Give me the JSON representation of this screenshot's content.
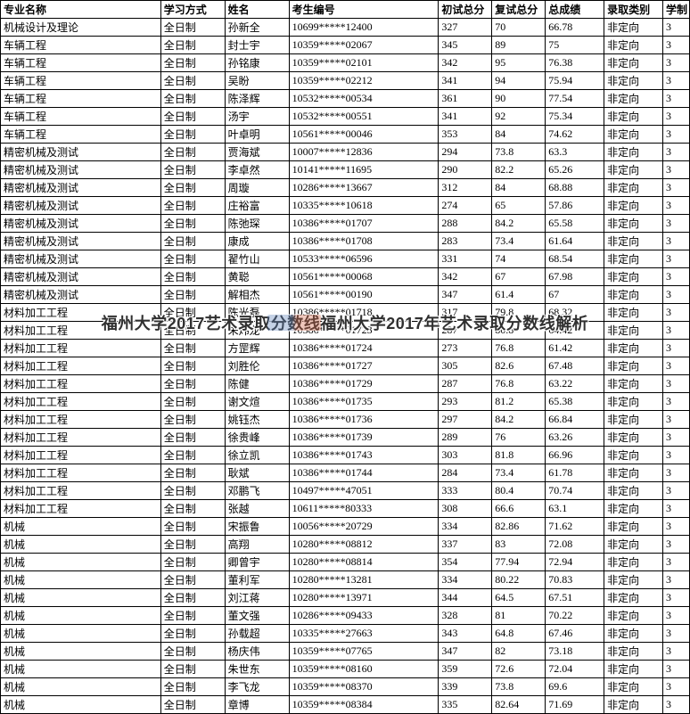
{
  "overlay_text": "福州大学2017艺术录取分数线福州大学2017年艺术录取分数线解析",
  "columns": [
    "专业名称",
    "学习方式",
    "姓名",
    "考生编号",
    "初试总分",
    "复试总分",
    "总成绩",
    "录取类别",
    "学制"
  ],
  "col_classes": [
    "col-major",
    "col-mode",
    "col-name",
    "col-id",
    "col-s1",
    "col-s2",
    "col-total",
    "col-cat",
    "col-dur"
  ],
  "rows": [
    [
      "机械设计及理论",
      "全日制",
      "孙新全",
      "10699*****12400",
      "327",
      "70",
      "66.78",
      "非定向",
      "3"
    ],
    [
      "车辆工程",
      "全日制",
      "封士宇",
      "10359*****02067",
      "345",
      "89",
      "75",
      "非定向",
      "3"
    ],
    [
      "车辆工程",
      "全日制",
      "孙铭康",
      "10359*****02101",
      "342",
      "95",
      "76.38",
      "非定向",
      "3"
    ],
    [
      "车辆工程",
      "全日制",
      "吴盼",
      "10359*****02212",
      "341",
      "94",
      "75.94",
      "非定向",
      "3"
    ],
    [
      "车辆工程",
      "全日制",
      "陈泽辉",
      "10532*****00534",
      "361",
      "90",
      "77.54",
      "非定向",
      "3"
    ],
    [
      "车辆工程",
      "全日制",
      "汤宇",
      "10532*****00551",
      "341",
      "92",
      "75.34",
      "非定向",
      "3"
    ],
    [
      "车辆工程",
      "全日制",
      "叶卓明",
      "10561*****00046",
      "353",
      "84",
      "74.62",
      "非定向",
      "3"
    ],
    [
      "精密机械及测试",
      "全日制",
      "贾海斌",
      "10007*****12836",
      "294",
      "73.8",
      "63.3",
      "非定向",
      "3"
    ],
    [
      "精密机械及测试",
      "全日制",
      "李卓然",
      "10141*****11695",
      "290",
      "82.2",
      "65.26",
      "非定向",
      "3"
    ],
    [
      "精密机械及测试",
      "全日制",
      "周璇",
      "10286*****13667",
      "312",
      "84",
      "68.88",
      "非定向",
      "3"
    ],
    [
      "精密机械及测试",
      "全日制",
      "庄裕富",
      "10335*****10618",
      "274",
      "65",
      "57.86",
      "非定向",
      "3"
    ],
    [
      "精密机械及测试",
      "全日制",
      "陈弛琛",
      "10386*****01707",
      "288",
      "84.2",
      "65.58",
      "非定向",
      "3"
    ],
    [
      "精密机械及测试",
      "全日制",
      "康成",
      "10386*****01708",
      "283",
      "73.4",
      "61.64",
      "非定向",
      "3"
    ],
    [
      "精密机械及测试",
      "全日制",
      "翟竹山",
      "10533*****06596",
      "331",
      "74",
      "68.54",
      "非定向",
      "3"
    ],
    [
      "精密机械及测试",
      "全日制",
      "黄聪",
      "10561*****00068",
      "342",
      "67",
      "67.98",
      "非定向",
      "3"
    ],
    [
      "精密机械及测试",
      "全日制",
      "解相杰",
      "10561*****00190",
      "347",
      "61.4",
      "67",
      "非定向",
      "3"
    ],
    [
      "材料加工工程",
      "全日制",
      "陈光磊",
      "10386*****01718",
      "317",
      "79.8",
      "68.32",
      "非定向",
      "3"
    ],
    [
      "材料加工工程",
      "全日制",
      "朱炜龙",
      "10386*****01723",
      "287",
      "80.8",
      "64.42",
      "非定向",
      "3"
    ],
    [
      "材料加工工程",
      "全日制",
      "方罡辉",
      "10386*****01724",
      "273",
      "76.8",
      "61.42",
      "非定向",
      "3"
    ],
    [
      "材料加工工程",
      "全日制",
      "刘胜伦",
      "10386*****01727",
      "305",
      "82.6",
      "67.48",
      "非定向",
      "3"
    ],
    [
      "材料加工工程",
      "全日制",
      "陈健",
      "10386*****01729",
      "287",
      "76.8",
      "63.22",
      "非定向",
      "3"
    ],
    [
      "材料加工工程",
      "全日制",
      "谢文煊",
      "10386*****01735",
      "293",
      "81.2",
      "65.38",
      "非定向",
      "3"
    ],
    [
      "材料加工工程",
      "全日制",
      "姚钰杰",
      "10386*****01736",
      "297",
      "84.2",
      "66.84",
      "非定向",
      "3"
    ],
    [
      "材料加工工程",
      "全日制",
      "徐贵峰",
      "10386*****01739",
      "289",
      "76",
      "63.26",
      "非定向",
      "3"
    ],
    [
      "材料加工工程",
      "全日制",
      "徐立凯",
      "10386*****01743",
      "303",
      "81.8",
      "66.96",
      "非定向",
      "3"
    ],
    [
      "材料加工工程",
      "全日制",
      "耿斌",
      "10386*****01744",
      "284",
      "73.4",
      "61.78",
      "非定向",
      "3"
    ],
    [
      "材料加工工程",
      "全日制",
      "邓鹏飞",
      "10497*****47051",
      "333",
      "80.4",
      "70.74",
      "非定向",
      "3"
    ],
    [
      "材料加工工程",
      "全日制",
      "张越",
      "10611*****80333",
      "308",
      "66.6",
      "63.1",
      "非定向",
      "3"
    ],
    [
      "机械",
      "全日制",
      "宋振鲁",
      "10056*****20729",
      "334",
      "82.86",
      "71.62",
      "非定向",
      "3"
    ],
    [
      "机械",
      "全日制",
      "高翔",
      "10280*****08812",
      "337",
      "83",
      "72.08",
      "非定向",
      "3"
    ],
    [
      "机械",
      "全日制",
      "卿曾宇",
      "10280*****08814",
      "354",
      "77.94",
      "72.94",
      "非定向",
      "3"
    ],
    [
      "机械",
      "全日制",
      "董利军",
      "10280*****13281",
      "334",
      "80.22",
      "70.83",
      "非定向",
      "3"
    ],
    [
      "机械",
      "全日制",
      "刘江蒋",
      "10280*****13971",
      "344",
      "64.5",
      "67.51",
      "非定向",
      "3"
    ],
    [
      "机械",
      "全日制",
      "董文强",
      "10286*****09433",
      "328",
      "81",
      "70.22",
      "非定向",
      "3"
    ],
    [
      "机械",
      "全日制",
      "孙载超",
      "10335*****27663",
      "343",
      "64.8",
      "67.46",
      "非定向",
      "3"
    ],
    [
      "机械",
      "全日制",
      "杨庆伟",
      "10359*****07765",
      "347",
      "82",
      "73.18",
      "非定向",
      "3"
    ],
    [
      "机械",
      "全日制",
      "朱世东",
      "10359*****08160",
      "359",
      "72.6",
      "72.04",
      "非定向",
      "3"
    ],
    [
      "机械",
      "全日制",
      "李飞龙",
      "10359*****08370",
      "339",
      "73.8",
      "69.6",
      "非定向",
      "3"
    ],
    [
      "机械",
      "全日制",
      "章博",
      "10359*****08384",
      "335",
      "82.64",
      "71.69",
      "非定向",
      "3"
    ]
  ]
}
